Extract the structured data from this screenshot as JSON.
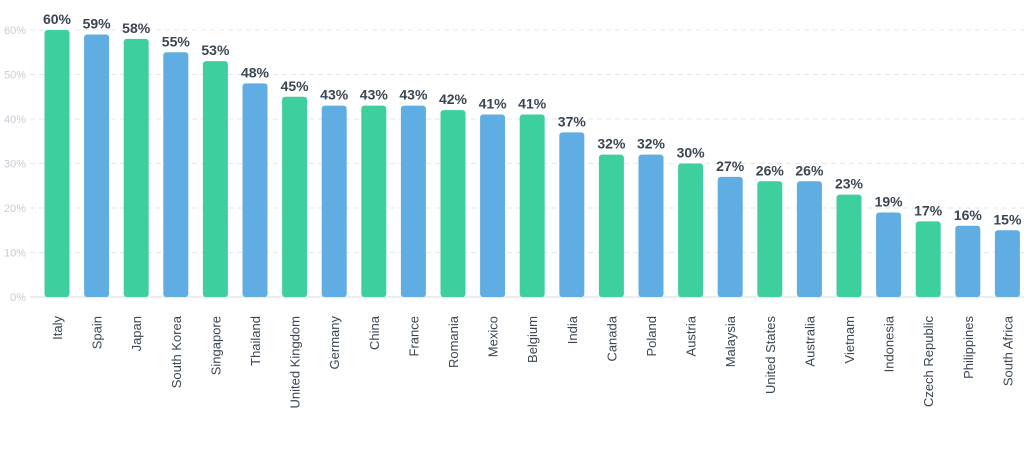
{
  "chart_data": {
    "type": "bar",
    "title": "",
    "xlabel": "",
    "ylabel": "",
    "ylim": [
      0,
      60
    ],
    "y_ticks": [
      "0%",
      "10%",
      "20%",
      "30%",
      "40%",
      "50%",
      "60%"
    ],
    "grid": true,
    "legend": "none",
    "categories": [
      "Italy",
      "Spain",
      "Japan",
      "South Korea",
      "Singapore",
      "Thailand",
      "United Kingdom",
      "Germany",
      "China",
      "France",
      "Romania",
      "Mexico",
      "Belgium",
      "India",
      "Canada",
      "Poland",
      "Austria",
      "Malaysia",
      "United States",
      "Australia",
      "Vietnam",
      "Indonesia",
      "Czech Republic",
      "Philippines",
      "South Africa"
    ],
    "values": [
      60,
      59,
      58,
      55,
      53,
      48,
      45,
      43,
      43,
      43,
      42,
      41,
      41,
      37,
      32,
      32,
      30,
      27,
      26,
      26,
      23,
      19,
      17,
      16,
      15
    ],
    "value_labels": [
      "60%",
      "59%",
      "58%",
      "55%",
      "53%",
      "48%",
      "45%",
      "43%",
      "43%",
      "43%",
      "42%",
      "41%",
      "41%",
      "37%",
      "32%",
      "32%",
      "30%",
      "27%",
      "26%",
      "26%",
      "23%",
      "19%",
      "17%",
      "16%",
      "15%"
    ],
    "bar_colors": [
      "green",
      "blue",
      "green",
      "blue",
      "green",
      "blue",
      "green",
      "blue",
      "green",
      "blue",
      "green",
      "blue",
      "green",
      "blue",
      "green",
      "blue",
      "green",
      "blue",
      "green",
      "blue",
      "green",
      "blue",
      "green",
      "blue",
      "blue"
    ]
  },
  "colors": {
    "green": "#3ecf9e",
    "blue": "#5fade3"
  }
}
